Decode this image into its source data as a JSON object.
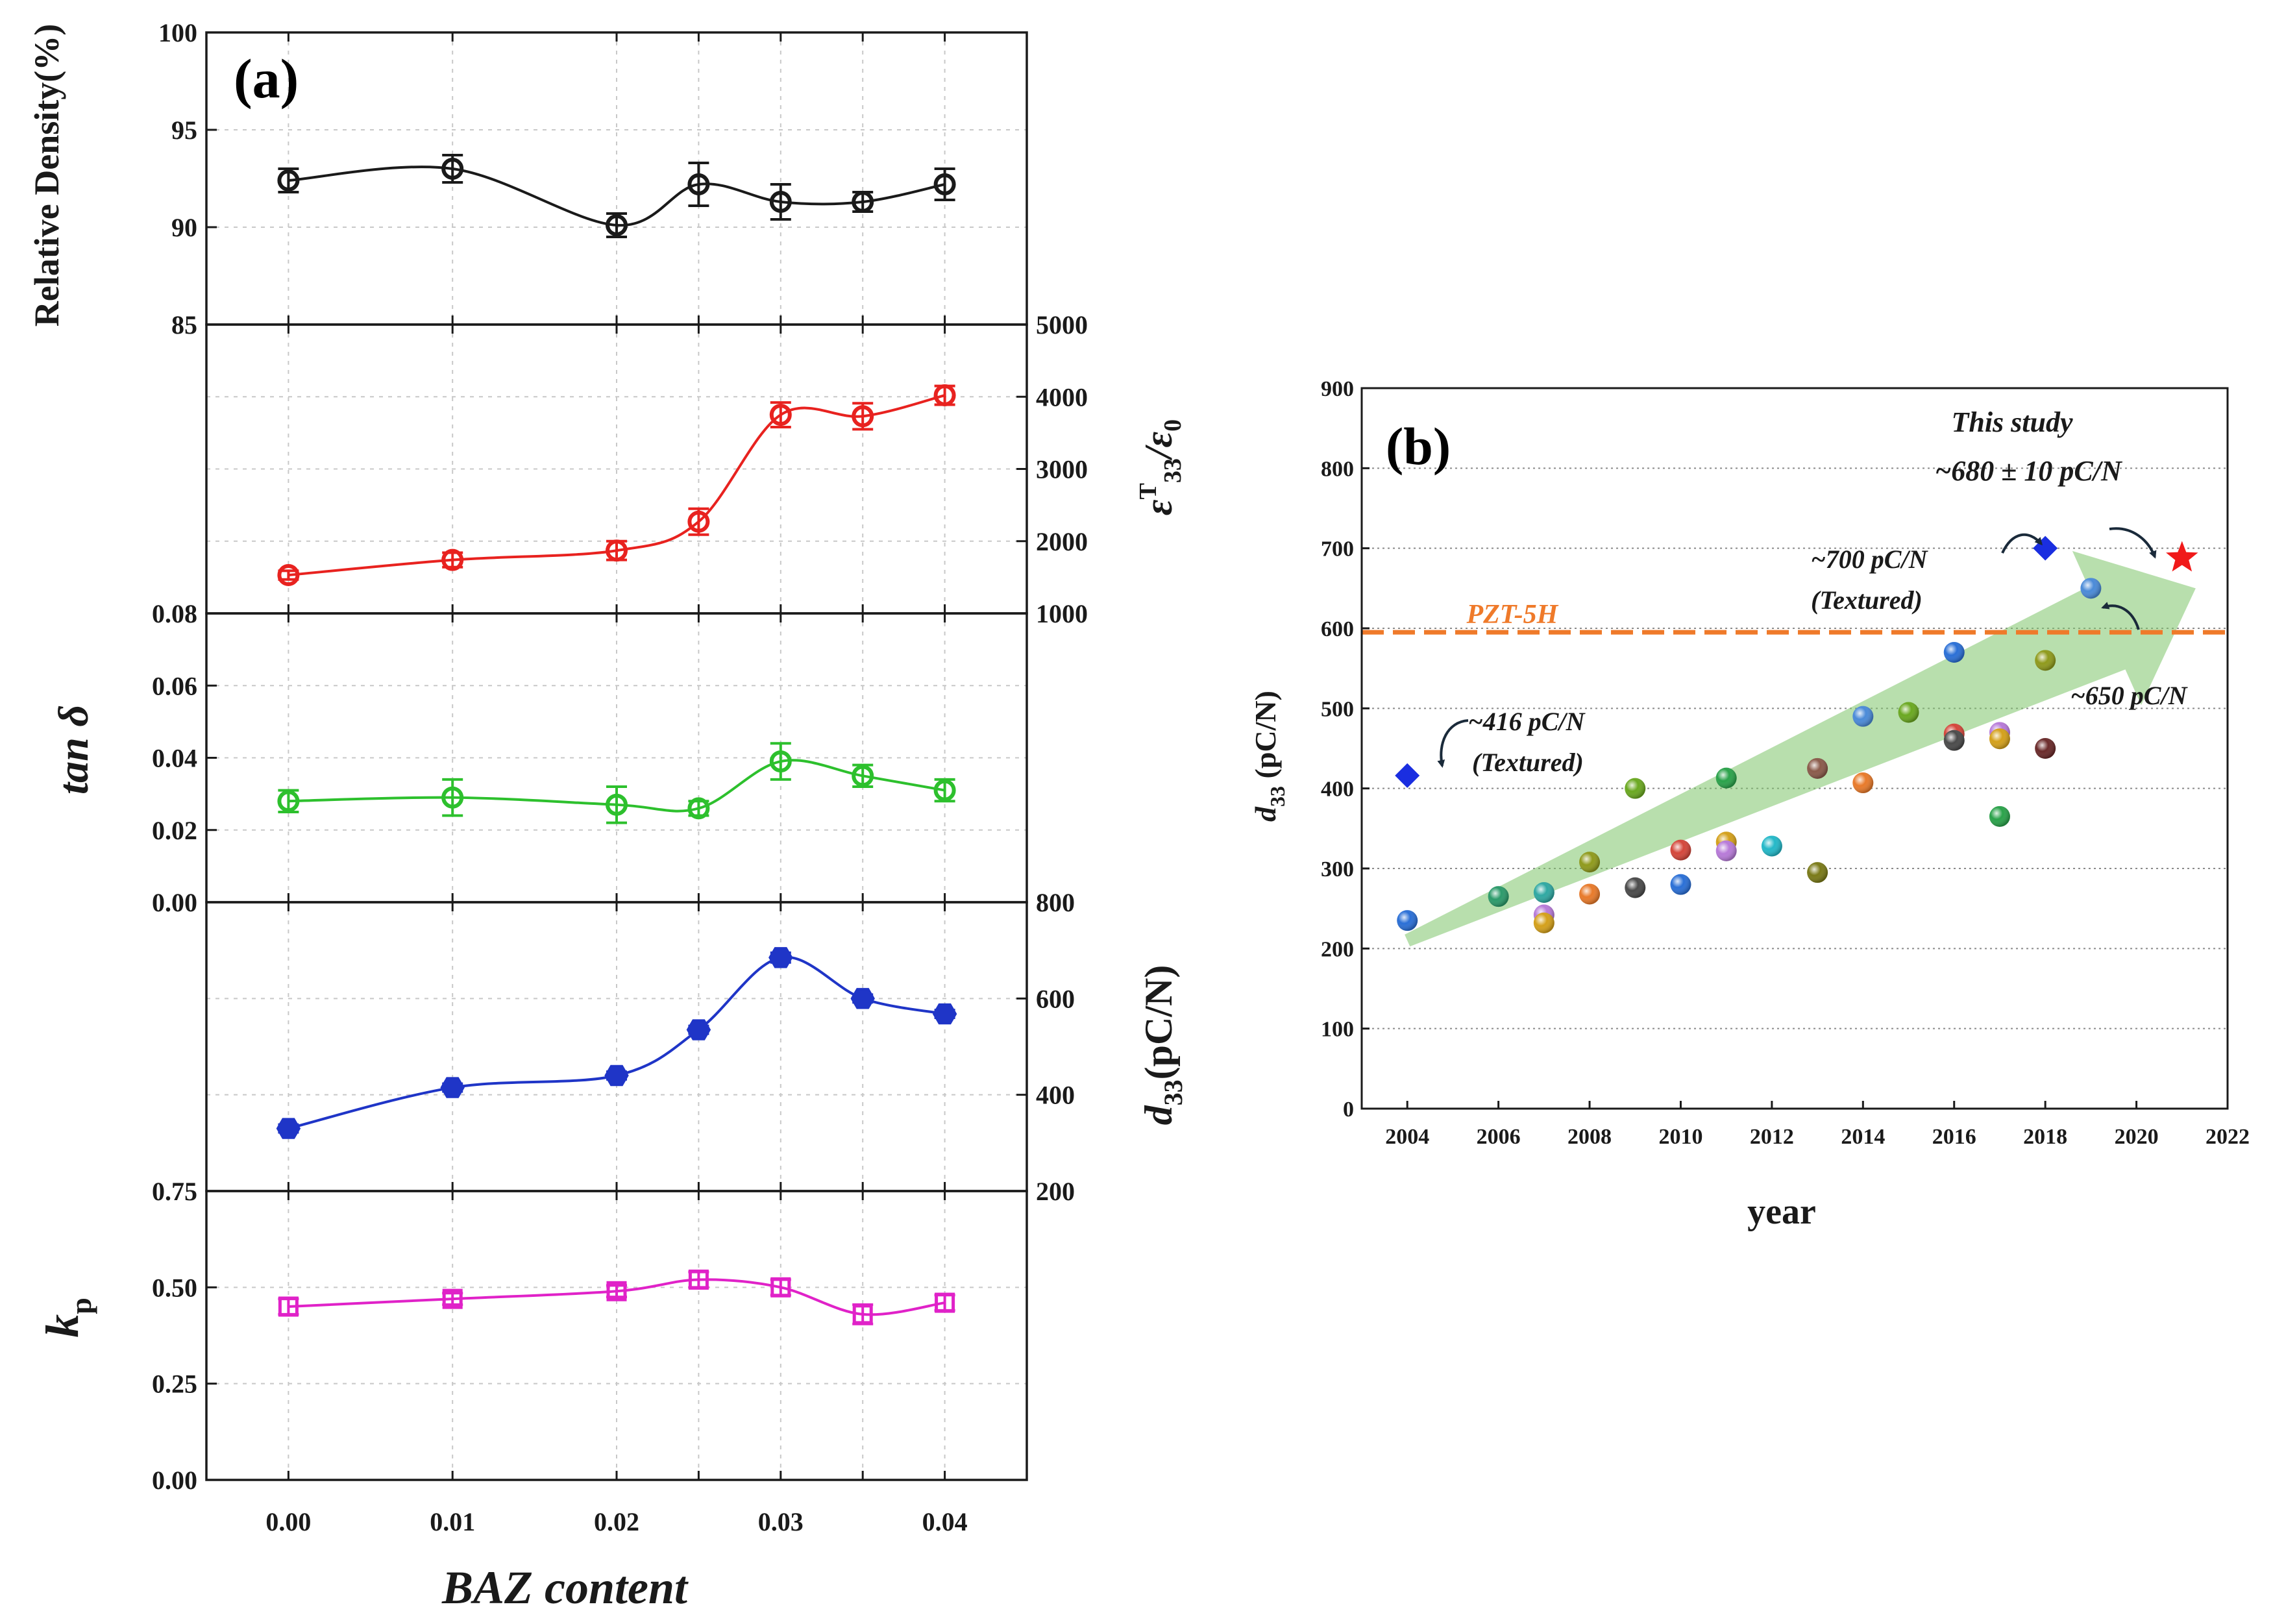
{
  "chart_data": [
    {
      "panel": "(a)",
      "type": "line",
      "xlabel": "BAZ content",
      "x": [
        0.0,
        0.01,
        0.02,
        0.025,
        0.03,
        0.035,
        0.04
      ],
      "xlim": [
        -0.005,
        0.045
      ],
      "xticks": [
        "0.00",
        "0.01",
        "0.02",
        "0.03",
        "0.04"
      ],
      "subplots": [
        {
          "id": "density",
          "ylabel": "Relative Density(%)",
          "color": "#1a1a1a",
          "marker": "circle",
          "ylim": [
            85,
            100
          ],
          "yticks": [
            "85",
            "90",
            "95",
            "100"
          ],
          "axis": "left",
          "values": [
            92.4,
            93.0,
            90.1,
            92.2,
            91.3,
            91.3,
            92.2
          ],
          "errors": [
            0.6,
            0.7,
            0.6,
            1.1,
            0.9,
            0.5,
            0.8
          ]
        },
        {
          "id": "permittivity",
          "ylabel_main": "ε",
          "ylabel_sup": "T",
          "ylabel_sub": "33",
          "ylabel_tail": "/ε",
          "ylabel_tail_sub": "0",
          "color": "#e8221f",
          "marker": "circle",
          "ylim": [
            1000,
            5000
          ],
          "yticks": [
            "1000",
            "2000",
            "3000",
            "4000",
            "5000"
          ],
          "axis": "right",
          "values": [
            1530,
            1740,
            1870,
            2270,
            3750,
            3730,
            4020
          ],
          "errors": [
            60,
            100,
            130,
            180,
            170,
            180,
            130
          ]
        },
        {
          "id": "tand",
          "ylabel": "tan δ",
          "color": "#2dc02d",
          "marker": "circle",
          "ylim": [
            0.0,
            0.08
          ],
          "yticks": [
            "0.00",
            "0.02",
            "0.04",
            "0.06",
            "0.08"
          ],
          "axis": "left",
          "values": [
            0.028,
            0.029,
            0.027,
            0.026,
            0.039,
            0.035,
            0.031
          ],
          "errors": [
            0.003,
            0.005,
            0.005,
            0.002,
            0.005,
            0.003,
            0.003
          ]
        },
        {
          "id": "d33",
          "ylabel_main": "d",
          "ylabel_sub": "33",
          "ylabel_tail": "(pC/N)",
          "color": "#1f35c7",
          "marker": "hexagon",
          "ylim": [
            200,
            800
          ],
          "yticks": [
            "200",
            "400",
            "600",
            "800"
          ],
          "axis": "right",
          "values": [
            330,
            415,
            440,
            535,
            685,
            600,
            568
          ],
          "errors": [
            8,
            8,
            8,
            8,
            10,
            8,
            8
          ]
        },
        {
          "id": "kp",
          "ylabel_main": "k",
          "ylabel_sub": "p",
          "color": "#e022c8",
          "marker": "square",
          "ylim": [
            0.0,
            0.75
          ],
          "yticks": [
            "0.00",
            "0.25",
            "0.50",
            "0.75"
          ],
          "axis": "left",
          "values": [
            0.45,
            0.47,
            0.49,
            0.52,
            0.5,
            0.43,
            0.46
          ],
          "errors": [
            0.02,
            0.015,
            0.015,
            0.02,
            0.02,
            0.025,
            0.02
          ]
        }
      ]
    },
    {
      "panel": "(b)",
      "type": "scatter",
      "xlabel": "year",
      "ylabel_main": "d",
      "ylabel_sub": "33",
      "ylabel_tail": " (pC/N)",
      "xlim": [
        2003,
        2022
      ],
      "ylim": [
        0,
        900
      ],
      "xticks": [
        "2004",
        "2006",
        "2008",
        "2010",
        "2012",
        "2014",
        "2016",
        "2018",
        "2020",
        "2022"
      ],
      "yticks": [
        "0",
        "100",
        "200",
        "300",
        "400",
        "500",
        "600",
        "700",
        "800",
        "900"
      ],
      "reference_line": {
        "label": "PZT-5H",
        "value": 595,
        "color": "#ef7a2a"
      },
      "trend_arrow": {
        "from": [
          2004,
          210
        ],
        "to": [
          2021.3,
          650
        ],
        "color": "#7dc569"
      },
      "points": [
        {
          "x": 2004,
          "y": 235,
          "color": "#2a6fd6"
        },
        {
          "x": 2006,
          "y": 265,
          "color": "#2b9a6a"
        },
        {
          "x": 2007,
          "y": 270,
          "color": "#2fa8a2"
        },
        {
          "x": 2007,
          "y": 242,
          "color": "#b77ad8"
        },
        {
          "x": 2007,
          "y": 232,
          "color": "#d4a01a"
        },
        {
          "x": 2008,
          "y": 308,
          "color": "#8f9a1c"
        },
        {
          "x": 2008,
          "y": 268,
          "color": "#e87a2a"
        },
        {
          "x": 2009,
          "y": 400,
          "color": "#6aa820"
        },
        {
          "x": 2009,
          "y": 276,
          "color": "#4a4a4a"
        },
        {
          "x": 2010,
          "y": 323,
          "color": "#d4463a"
        },
        {
          "x": 2010,
          "y": 280,
          "color": "#2a6fd6"
        },
        {
          "x": 2011,
          "y": 413,
          "color": "#2aa24a"
        },
        {
          "x": 2011,
          "y": 333,
          "color": "#d4a01a"
        },
        {
          "x": 2011,
          "y": 322,
          "color": "#b77ad8"
        },
        {
          "x": 2012,
          "y": 328,
          "color": "#23b8c8"
        },
        {
          "x": 2013,
          "y": 425,
          "color": "#8a5a4a"
        },
        {
          "x": 2013,
          "y": 295,
          "color": "#7a7a18"
        },
        {
          "x": 2014,
          "y": 490,
          "color": "#4a8ad8"
        },
        {
          "x": 2014,
          "y": 407,
          "color": "#e87a2a"
        },
        {
          "x": 2015,
          "y": 495,
          "color": "#6aa820"
        },
        {
          "x": 2016,
          "y": 570,
          "color": "#2a6fd6"
        },
        {
          "x": 2016,
          "y": 468,
          "color": "#d4463a"
        },
        {
          "x": 2016,
          "y": 460,
          "color": "#4a4a4a"
        },
        {
          "x": 2017,
          "y": 470,
          "color": "#b77ad8"
        },
        {
          "x": 2017,
          "y": 462,
          "color": "#d4a01a"
        },
        {
          "x": 2017,
          "y": 365,
          "color": "#2aa24a"
        },
        {
          "x": 2018,
          "y": 560,
          "color": "#8f9a1c"
        },
        {
          "x": 2018,
          "y": 450,
          "color": "#6a2a2a"
        },
        {
          "x": 2019,
          "y": 650,
          "color": "#4a8ad8"
        }
      ],
      "textured_points": [
        {
          "x": 2004,
          "y": 416,
          "color": "#1a2ee0"
        },
        {
          "x": 2018,
          "y": 700,
          "color": "#1a2ee0"
        }
      ],
      "this_study": {
        "x": 2021,
        "y": 688,
        "color": "#f01a1a"
      },
      "annotations": {
        "a416_line1": "~416 pC/N",
        "a416_line2": "(Textured)",
        "a700_line1": "~700 pC/N",
        "a700_line2": "(Textured)",
        "a650": "~650 pC/N",
        "study_line1": "This study",
        "study_line2": "~680 ± 10 pC/N"
      }
    }
  ]
}
